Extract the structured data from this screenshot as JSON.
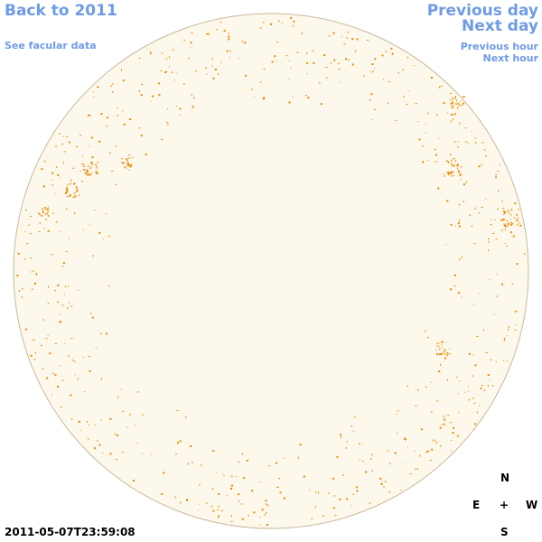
{
  "nav": {
    "back": "Back to 2011",
    "facular": "See facular data",
    "previous_day": "Previous day",
    "next_day": "Next day",
    "previous_hour": "Previous hour",
    "next_hour": "Next hour"
  },
  "timestamp": "2011-05-07T23:59:08",
  "compass": {
    "north": "N",
    "east": "E",
    "center": "+",
    "west": "W",
    "south": "S"
  }
}
